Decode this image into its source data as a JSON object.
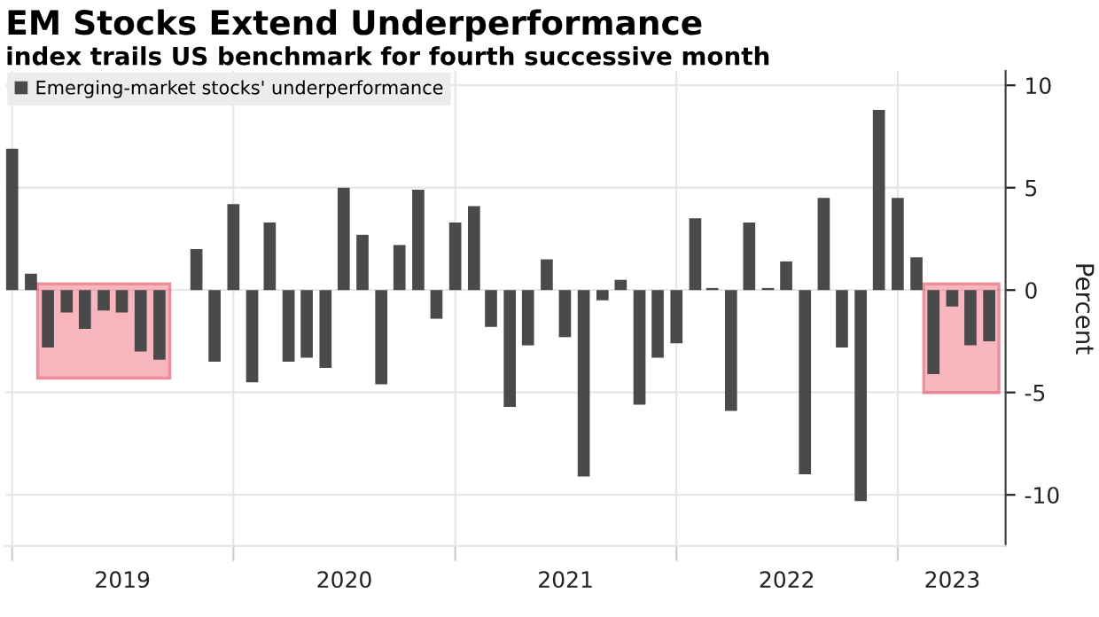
{
  "chart_data": {
    "type": "bar",
    "title": "EM Stocks Extend Underperformance",
    "subtitle": "index trails US benchmark for fourth successive month",
    "ylabel": "Percent",
    "x": [
      "2019-01",
      "2019-02",
      "2019-03",
      "2019-04",
      "2019-05",
      "2019-06",
      "2019-07",
      "2019-08",
      "2019-09",
      "2019-10",
      "2019-11",
      "2019-12",
      "2020-01",
      "2020-02",
      "2020-03",
      "2020-04",
      "2020-05",
      "2020-06",
      "2020-07",
      "2020-08",
      "2020-09",
      "2020-10",
      "2020-11",
      "2020-12",
      "2021-01",
      "2021-02",
      "2021-03",
      "2021-04",
      "2021-05",
      "2021-06",
      "2021-07",
      "2021-08",
      "2021-09",
      "2021-10",
      "2021-11",
      "2021-12",
      "2022-01",
      "2022-02",
      "2022-03",
      "2022-04",
      "2022-05",
      "2022-06",
      "2022-07",
      "2022-08",
      "2022-09",
      "2022-10",
      "2022-11",
      "2022-12",
      "2023-01",
      "2023-02",
      "2023-03",
      "2023-04",
      "2023-05",
      "2023-06"
    ],
    "series": [
      {
        "name": "Emerging-market stocks' underperformance",
        "color": "#4a4a4a",
        "values": [
          6.9,
          0.8,
          -2.8,
          -1.1,
          -1.9,
          -1.0,
          -1.1,
          -3.0,
          -3.4,
          0,
          2.0,
          -3.5,
          4.2,
          -4.5,
          3.3,
          -3.5,
          -3.3,
          -3.8,
          5.0,
          2.7,
          -4.6,
          2.2,
          4.9,
          -1.4,
          3.3,
          4.1,
          -1.8,
          -5.7,
          -2.7,
          1.5,
          -2.3,
          -9.1,
          -0.5,
          0.5,
          -5.6,
          -3.3,
          -2.6,
          3.5,
          0.1,
          -5.9,
          3.3,
          0.1,
          1.4,
          -9.0,
          4.5,
          -2.8,
          -10.3,
          8.8,
          4.5,
          1.6,
          -4.1,
          -0.8,
          -2.7,
          -2.5
        ]
      }
    ],
    "xlim": [
      "2018-12-21",
      "2023-06-28"
    ],
    "xticks": [
      {
        "value": "2019-01-01",
        "label": null
      },
      {
        "value": "2019-07-02",
        "label": "2019"
      },
      {
        "value": "2020-01-01",
        "label": null
      },
      {
        "value": "2020-07-02",
        "label": "2020"
      },
      {
        "value": "2021-01-01",
        "label": null
      },
      {
        "value": "2021-07-02",
        "label": "2021"
      },
      {
        "value": "2022-01-01",
        "label": null
      },
      {
        "value": "2022-07-02",
        "label": "2022"
      },
      {
        "value": "2023-01-01",
        "label": null
      },
      {
        "value": "2023-04-01",
        "label": "2023"
      }
    ],
    "ylim": [
      -12.5,
      10.7
    ],
    "yticks": [
      -10,
      -5,
      0,
      5,
      10
    ],
    "bands": [
      {
        "axis": "x",
        "from": "2019-02-12",
        "to": "2019-09-18",
        "color": "#f27a8a"
      },
      {
        "axis": "x",
        "from": "2023-02-13",
        "to": "2023-06-17",
        "color": "#f27a8a"
      }
    ],
    "grid": true,
    "legend": "top left"
  }
}
